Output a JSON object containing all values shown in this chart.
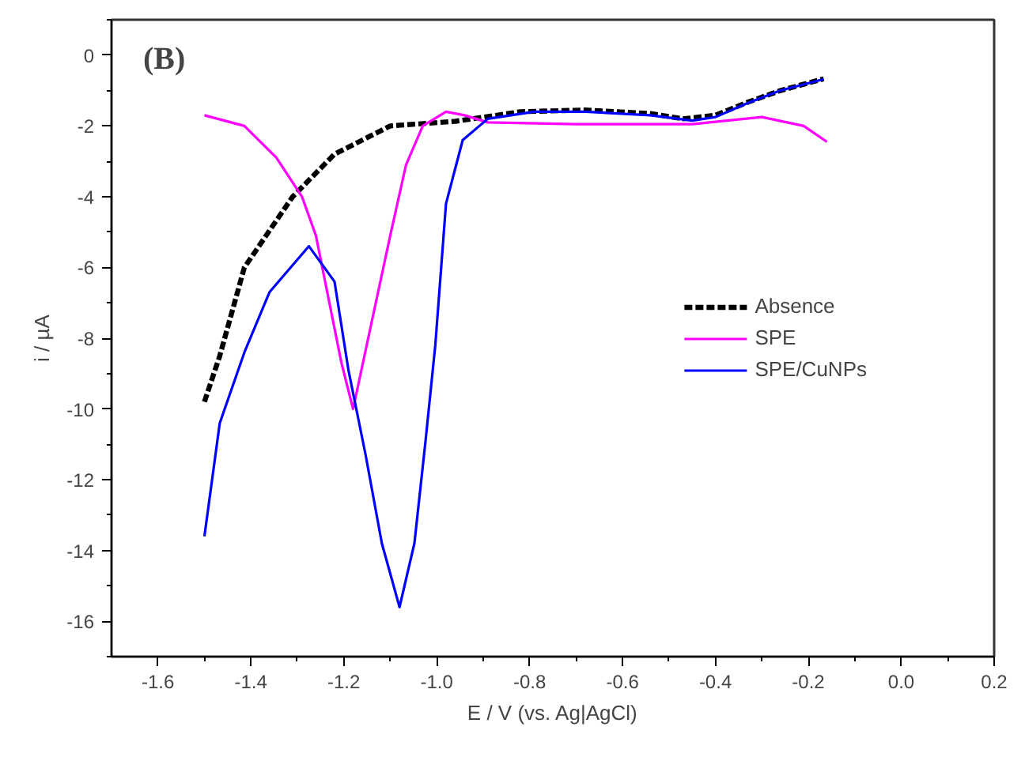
{
  "chart_data": {
    "type": "line",
    "xlabel": "E / V (vs. Ag|AgCl)",
    "ylabel": "i / µA",
    "annotations": [
      "(B)"
    ],
    "xlim": [
      -1.7,
      0.2
    ],
    "xticks": [
      {
        "value": -1.6,
        "label": "-1.6"
      },
      {
        "value": -1.4,
        "label": "-1.4"
      },
      {
        "value": -1.2,
        "label": "-1.2"
      },
      {
        "value": -1.0,
        "label": "-1.0"
      },
      {
        "value": -0.8,
        "label": "-0.8"
      },
      {
        "value": -0.6,
        "label": "-0.6"
      },
      {
        "value": -0.4,
        "label": "-0.4"
      },
      {
        "value": -0.2,
        "label": "-0.2"
      },
      {
        "value": 0.0,
        "label": "0.0"
      },
      {
        "value": 0.2,
        "label": "0.2"
      }
    ],
    "ylim": [
      -17,
      1
    ],
    "yticks": [
      -16,
      -14,
      -12,
      -10,
      -8,
      -6,
      -4,
      -2,
      0
    ],
    "grid": false,
    "legend": "right",
    "series": [
      {
        "name": "Absence",
        "color": "#000000",
        "line_style": "dashed",
        "x": [
          -1.5,
          -1.467,
          -1.414,
          -1.31,
          -1.22,
          -1.1,
          -0.96,
          -0.82,
          -0.68,
          -0.54,
          -0.47,
          -0.4,
          -0.33,
          -0.26,
          -0.167
        ],
        "values": [
          -9.8,
          -8.5,
          -6.0,
          -4.0,
          -2.8,
          -2.0,
          -1.87,
          -1.6,
          -1.55,
          -1.65,
          -1.8,
          -1.7,
          -1.33,
          -1.0,
          -0.67
        ]
      },
      {
        "name": "SPE",
        "color": "#ff00ff",
        "line_style": "solid",
        "x": [
          -1.5,
          -1.414,
          -1.345,
          -1.29,
          -1.26,
          -1.205,
          -1.18,
          -1.136,
          -1.1,
          -1.066,
          -1.03,
          -0.98,
          -0.94,
          -0.89,
          -0.7,
          -0.45,
          -0.3,
          -0.21,
          -0.16
        ],
        "values": [
          -1.7,
          -2.0,
          -2.9,
          -4.0,
          -5.1,
          -8.7,
          -10.0,
          -7.3,
          -5.1,
          -3.1,
          -2.0,
          -1.6,
          -1.7,
          -1.9,
          -1.95,
          -1.95,
          -1.75,
          -2.0,
          -2.45
        ]
      },
      {
        "name": "SPE/CuNPs",
        "color": "#0000ff",
        "line_style": "solid",
        "x": [
          -1.5,
          -1.467,
          -1.414,
          -1.36,
          -1.275,
          -1.22,
          -1.19,
          -1.153,
          -1.118,
          -1.08,
          -1.048,
          -1.024,
          -1.003,
          -0.98,
          -0.944,
          -0.89,
          -0.79,
          -0.68,
          -0.54,
          -0.45,
          -0.4,
          -0.33,
          -0.26,
          -0.167
        ],
        "values": [
          -13.6,
          -10.4,
          -8.4,
          -6.7,
          -5.4,
          -6.4,
          -8.9,
          -11.3,
          -13.8,
          -15.6,
          -13.8,
          -10.9,
          -8.2,
          -4.2,
          -2.4,
          -1.8,
          -1.6,
          -1.6,
          -1.7,
          -1.85,
          -1.75,
          -1.35,
          -1.0,
          -0.68
        ]
      }
    ]
  }
}
